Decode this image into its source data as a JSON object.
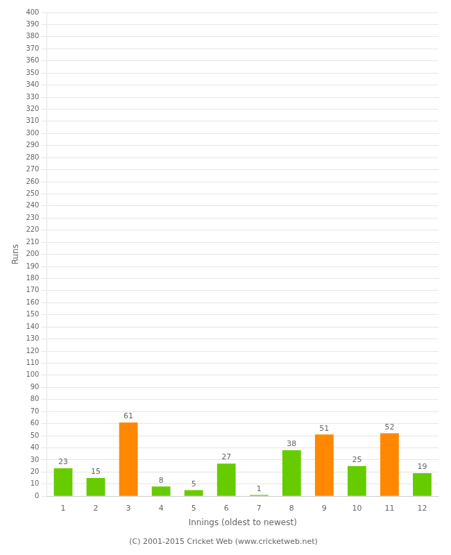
{
  "chart_data": {
    "type": "bar",
    "categories": [
      "1",
      "2",
      "3",
      "4",
      "5",
      "6",
      "7",
      "8",
      "9",
      "10",
      "11",
      "12"
    ],
    "values": [
      23,
      15,
      61,
      8,
      5,
      27,
      1,
      38,
      51,
      25,
      52,
      19
    ],
    "colors": [
      "#66cc00",
      "#66cc00",
      "#ff8800",
      "#66cc00",
      "#66cc00",
      "#66cc00",
      "#66cc00",
      "#66cc00",
      "#ff8800",
      "#66cc00",
      "#ff8800",
      "#66cc00"
    ],
    "xlabel": "Innings (oldest to newest)",
    "ylabel": "Runs",
    "ylim": [
      0,
      400
    ],
    "yticks": [
      0,
      10,
      20,
      30,
      40,
      50,
      60,
      70,
      80,
      90,
      100,
      110,
      120,
      130,
      140,
      150,
      160,
      170,
      180,
      190,
      200,
      210,
      220,
      230,
      240,
      250,
      260,
      270,
      280,
      290,
      300,
      310,
      320,
      330,
      340,
      350,
      360,
      370,
      380,
      390,
      400
    ],
    "grid": true,
    "data_labels": true,
    "annotations": [
      "(C) 2001-2015 Cricket Web (www.cricketweb.net)"
    ]
  }
}
